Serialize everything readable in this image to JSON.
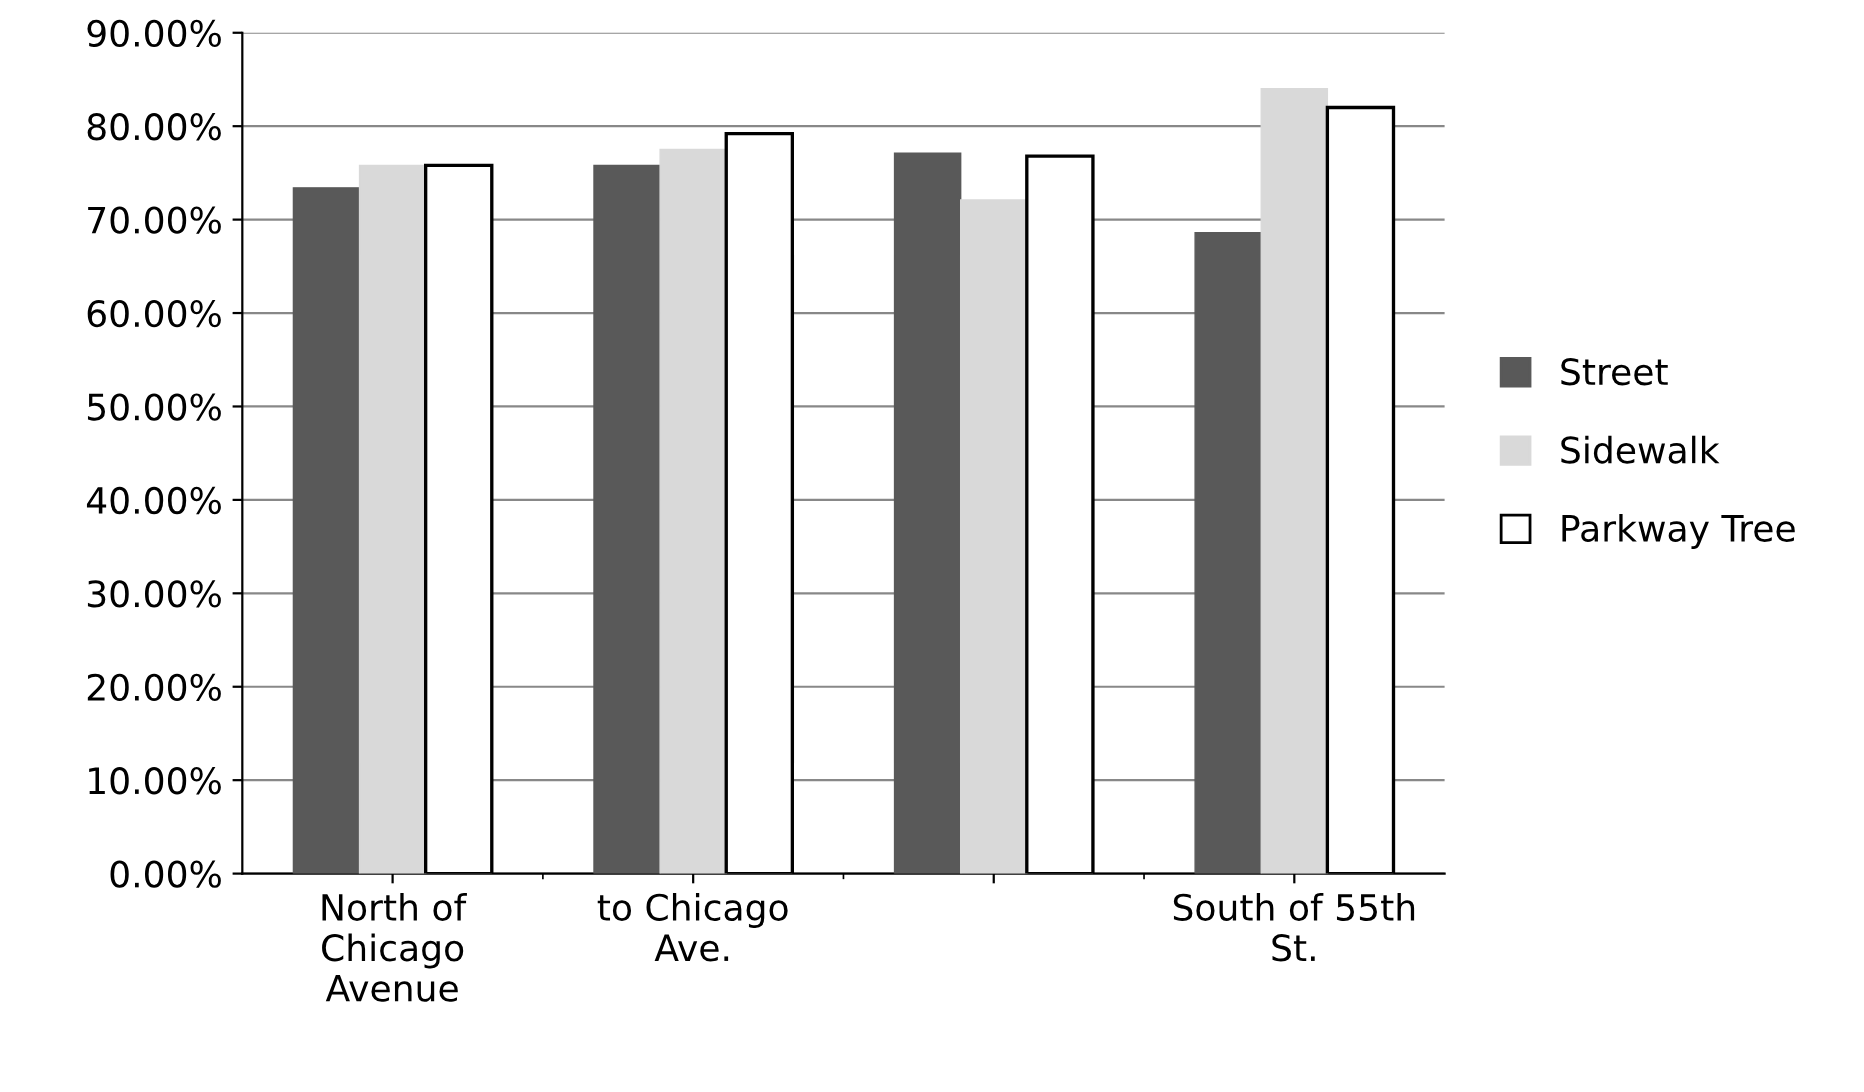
{
  "chart_data": {
    "type": "bar",
    "categories": [
      "North of Chicago Avenue",
      "to Chicago Ave.",
      null,
      "South of 55th St."
    ],
    "series": [
      {
        "name": "Street",
        "color": "#595959",
        "values": [
          73.4,
          75.8,
          77.1,
          68.6
        ]
      },
      {
        "name": "Sidewalk",
        "color": "#d9d9d9",
        "values": [
          75.8,
          77.5,
          72.1,
          84.0
        ]
      },
      {
        "name": "Parkway Tree",
        "color": "#ffffff",
        "values": [
          75.8,
          79.2,
          76.8,
          82.0
        ]
      }
    ],
    "ylim": [
      0,
      90
    ],
    "yticks": [
      {
        "value": 0,
        "label": "0.00%"
      },
      {
        "value": 10,
        "label": "10.00%"
      },
      {
        "value": 20,
        "label": "20.00%"
      },
      {
        "value": 30,
        "label": "30.00%"
      },
      {
        "value": 40,
        "label": "40.00%"
      },
      {
        "value": 50,
        "label": "50.00%"
      },
      {
        "value": 60,
        "label": "60.00%"
      },
      {
        "value": 70,
        "label": "70.00%"
      },
      {
        "value": 80,
        "label": "80.00%"
      },
      {
        "value": 90,
        "label": "90.00%"
      }
    ],
    "grid": "y",
    "legend": "right"
  }
}
